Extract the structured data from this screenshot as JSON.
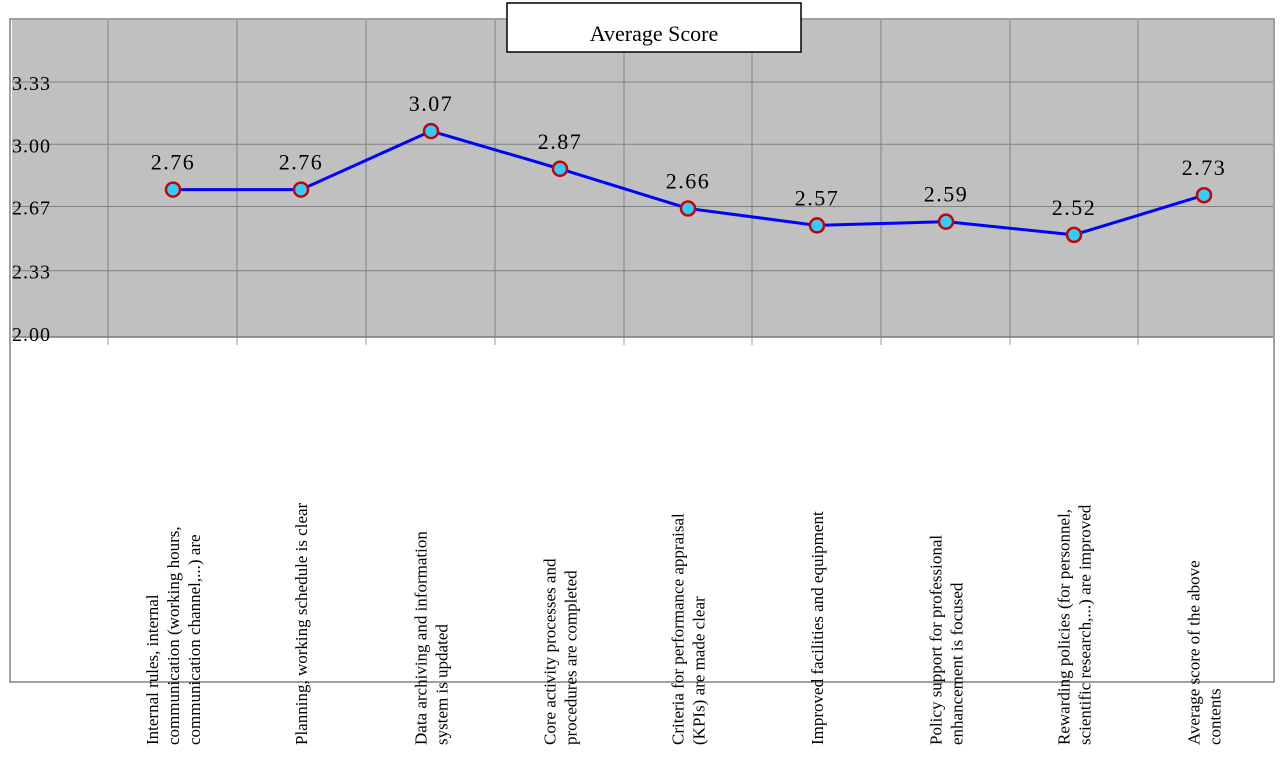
{
  "chart_data": {
    "type": "line",
    "title": "Average Score",
    "categories": [
      [
        "Internal rules, internal",
        "communication (working hours,",
        "communication channel,...) are"
      ],
      [
        "Planning, working schedule is clear"
      ],
      [
        "Data archiving and information",
        "system is updated"
      ],
      [
        "Core activity processes and",
        "procedures are completed"
      ],
      [
        "Criteria for performance appraisal",
        "(KPIs) are made clear"
      ],
      [
        "Improved facilities and equipment"
      ],
      [
        "Policy support for professional",
        "enhancement is focused"
      ],
      [
        "Rewarding policies (for personnel,",
        "scientific research,...) are improved"
      ],
      [
        "Average score of the above",
        "contents"
      ]
    ],
    "series": [
      {
        "values": [
          2.76,
          2.76,
          3.07,
          2.87,
          2.66,
          2.57,
          2.59,
          2.52,
          2.73
        ]
      }
    ],
    "data_labels": [
      "2.76",
      "2.76",
      "3.07",
      "2.87",
      "2.66",
      "2.57",
      "2.59",
      "2.52",
      "2.73"
    ],
    "y_ticks": [
      3.33,
      3.0,
      2.67,
      2.33,
      2.0
    ],
    "y_tick_labels": [
      "3.33",
      "3.00",
      "2.67",
      "2.33",
      "2.00"
    ],
    "ylim": [
      2.0,
      3.33
    ],
    "grid": true,
    "colors": {
      "plot_background": "#c0c0c0",
      "gridline": "#808080",
      "line": "#0000ff",
      "marker_fill": "#33ccff",
      "marker_edge": "#cc0000"
    }
  }
}
